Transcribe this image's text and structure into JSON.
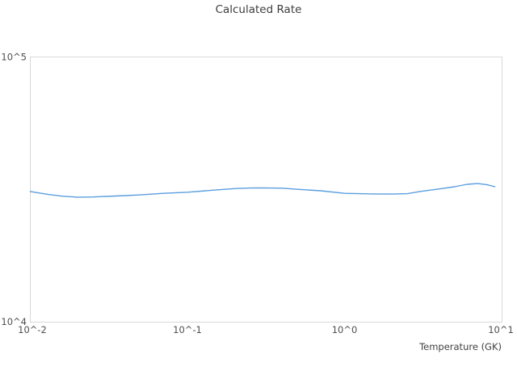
{
  "chart_data": {
    "type": "line",
    "title": "Calculated Rate",
    "xlabel": "Temperature (GK)",
    "ylabel": "",
    "x_scale": "log",
    "y_scale": "log",
    "xlim": [
      0.01,
      10
    ],
    "ylim": [
      10000,
      100000
    ],
    "grid": false,
    "legend_position": "none",
    "border_color": "#d9d9d9",
    "x_ticks": {
      "values": [
        0.01,
        0.1,
        1,
        10
      ],
      "labels": [
        "10^-2",
        "10^-1",
        "10^0",
        "10^1"
      ]
    },
    "y_ticks": {
      "values": [
        10000,
        100000
      ],
      "labels": [
        "10^4",
        "10^5"
      ]
    },
    "series": [
      {
        "name": "Calculated Rate",
        "color": "#5b9ede",
        "x": [
          0.01,
          0.013,
          0.016,
          0.02,
          0.025,
          0.03,
          0.04,
          0.05,
          0.07,
          0.1,
          0.15,
          0.2,
          0.25,
          0.3,
          0.4,
          0.5,
          0.7,
          1.0,
          1.5,
          2.0,
          2.5,
          3.0,
          4.0,
          5.0,
          6.0,
          7.0,
          8.0,
          9.0
        ],
        "y": [
          31100,
          30300,
          29850,
          29600,
          29650,
          29800,
          30000,
          30200,
          30600,
          30900,
          31500,
          31900,
          32050,
          32100,
          32000,
          31700,
          31300,
          30600,
          30450,
          30400,
          30500,
          31100,
          31800,
          32400,
          33100,
          33300,
          33000,
          32400
        ]
      }
    ]
  }
}
